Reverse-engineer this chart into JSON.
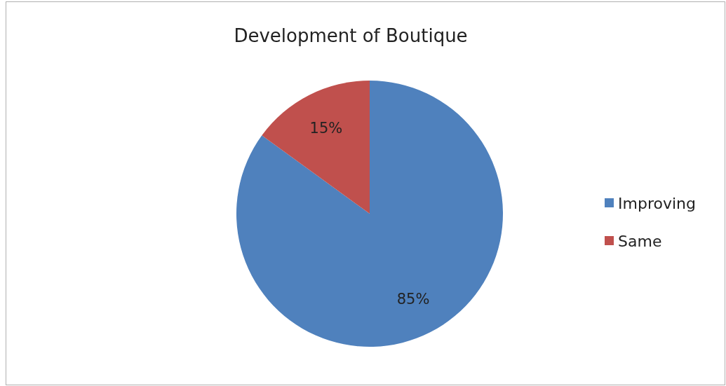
{
  "chart_data": {
    "type": "pie",
    "title": "Development of Boutique",
    "categories": [
      "Improving",
      "Same"
    ],
    "values": [
      85,
      15
    ],
    "colors": [
      "#4f81bd",
      "#c0504d"
    ],
    "value_labels": [
      "85%",
      "15%"
    ],
    "legend": "right"
  }
}
